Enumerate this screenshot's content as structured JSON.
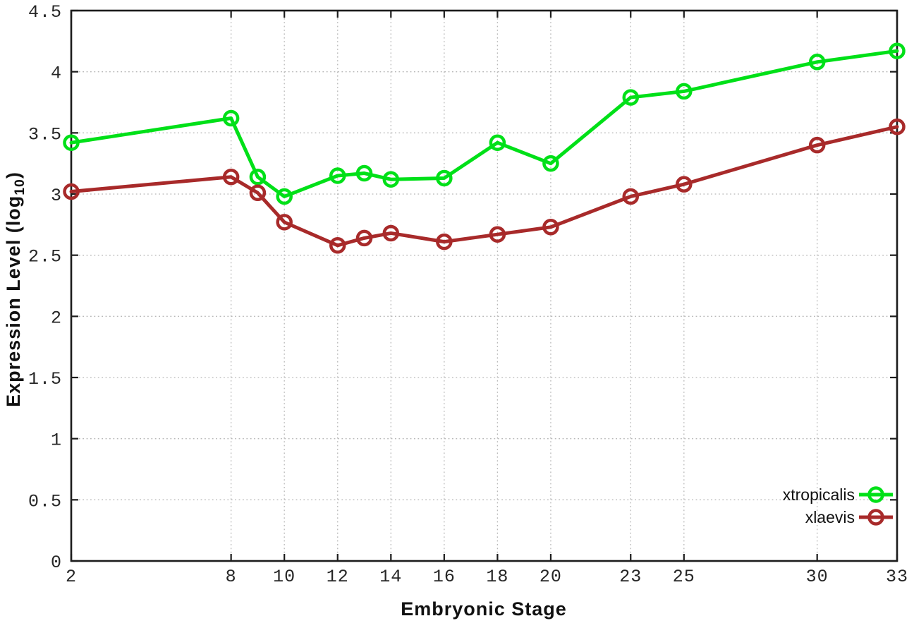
{
  "figure": {
    "background": "#ffffff"
  },
  "chart_data": {
    "type": "line",
    "title": "",
    "xlabel": "Embryonic Stage",
    "ylabel": "Expression Level (log10)",
    "ylabel_parts": {
      "main": "Expression Level (log",
      "sub": "10",
      "end": ")"
    },
    "xlim": [
      2,
      33
    ],
    "ylim": [
      0,
      4.5
    ],
    "x_ticks": [
      2,
      8,
      10,
      12,
      14,
      16,
      18,
      20,
      23,
      25,
      30,
      33
    ],
    "y_ticks": [
      0,
      0.5,
      1,
      1.5,
      2,
      2.5,
      3,
      3.5,
      4,
      4.5
    ],
    "grid": true,
    "grid_style": "dotted",
    "legend_position": "bottom-right",
    "x": [
      2,
      8,
      9,
      10,
      12,
      13,
      14,
      16,
      18,
      20,
      23,
      25,
      30,
      33
    ],
    "series": [
      {
        "name": "xtropicalis",
        "color": "#00e018",
        "marker": "open-circle",
        "values": [
          3.42,
          3.62,
          3.14,
          2.98,
          3.15,
          3.17,
          3.12,
          3.13,
          3.42,
          3.25,
          3.79,
          3.84,
          4.08,
          4.17
        ]
      },
      {
        "name": "xlaevis",
        "color": "#a82a2a",
        "marker": "open-circle",
        "values": [
          3.02,
          3.14,
          3.01,
          2.77,
          2.58,
          2.64,
          2.68,
          2.61,
          2.67,
          2.73,
          2.98,
          3.08,
          3.4,
          3.55
        ]
      }
    ],
    "style": {
      "axis_color": "#1c1c1c",
      "grid_color": "#b8b8b8",
      "tick_label_color": "#262626",
      "line_width": 5,
      "marker_radius": 9.5,
      "marker_stroke": 4.5
    }
  }
}
